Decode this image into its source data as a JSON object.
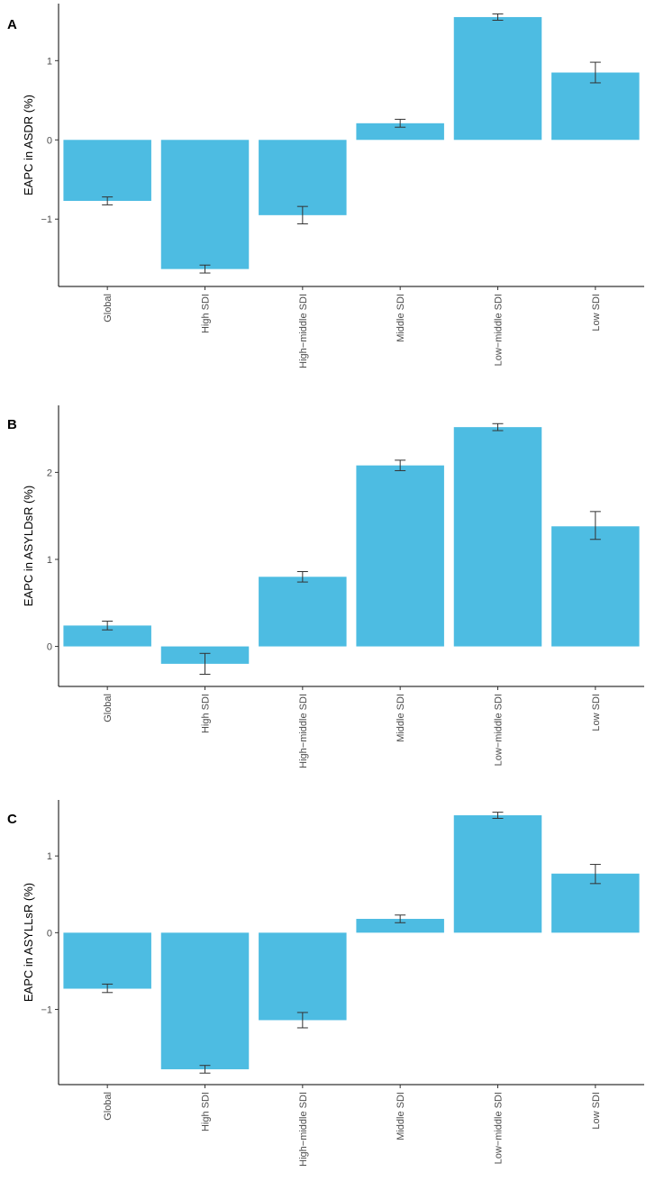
{
  "chart_data": [
    {
      "type": "bar",
      "panel": "A",
      "ylabel": "EAPC in ASDR (%)",
      "categories": [
        "Global",
        "High SDI",
        "High−middle SDI",
        "Middle SDI",
        "Low−middle SDI",
        "Low SDI"
      ],
      "values": [
        -0.77,
        -1.63,
        -0.95,
        0.21,
        1.55,
        0.85
      ],
      "error_low": [
        -0.82,
        -1.68,
        -1.06,
        0.16,
        1.51,
        0.72
      ],
      "error_high": [
        -0.72,
        -1.58,
        -0.84,
        0.26,
        1.59,
        0.98
      ],
      "yticks": [
        -1,
        0,
        1
      ],
      "ylim": [
        -1.85,
        1.72
      ],
      "bar_color": "#4DBCE2"
    },
    {
      "type": "bar",
      "panel": "B",
      "ylabel": "EAPC in ASYLDsR (%)",
      "categories": [
        "Global",
        "High SDI",
        "High−middle SDI",
        "Middle SDI",
        "Low−middle SDI",
        "Low SDI"
      ],
      "values": [
        0.24,
        -0.2,
        0.8,
        2.08,
        2.52,
        1.38
      ],
      "error_low": [
        0.19,
        -0.32,
        0.74,
        2.02,
        2.48,
        1.23
      ],
      "error_high": [
        0.29,
        -0.08,
        0.86,
        2.14,
        2.56,
        1.55
      ],
      "yticks": [
        0,
        1,
        2
      ],
      "ylim": [
        -0.46,
        2.77
      ],
      "bar_color": "#4DBCE2"
    },
    {
      "type": "bar",
      "panel": "C",
      "ylabel": "EAPC in ASYLLsR (%)",
      "categories": [
        "Global",
        "High SDI",
        "High−middle SDI",
        "Middle SDI",
        "Low−middle SDI",
        "Low SDI"
      ],
      "values": [
        -0.73,
        -1.78,
        -1.14,
        0.18,
        1.53,
        0.77
      ],
      "error_low": [
        -0.78,
        -1.83,
        -1.24,
        0.13,
        1.49,
        0.64
      ],
      "error_high": [
        -0.67,
        -1.73,
        -1.04,
        0.23,
        1.57,
        0.89
      ],
      "yticks": [
        -1,
        0,
        1
      ],
      "ylim": [
        -1.98,
        1.73
      ],
      "bar_color": "#4DBCE2"
    }
  ]
}
